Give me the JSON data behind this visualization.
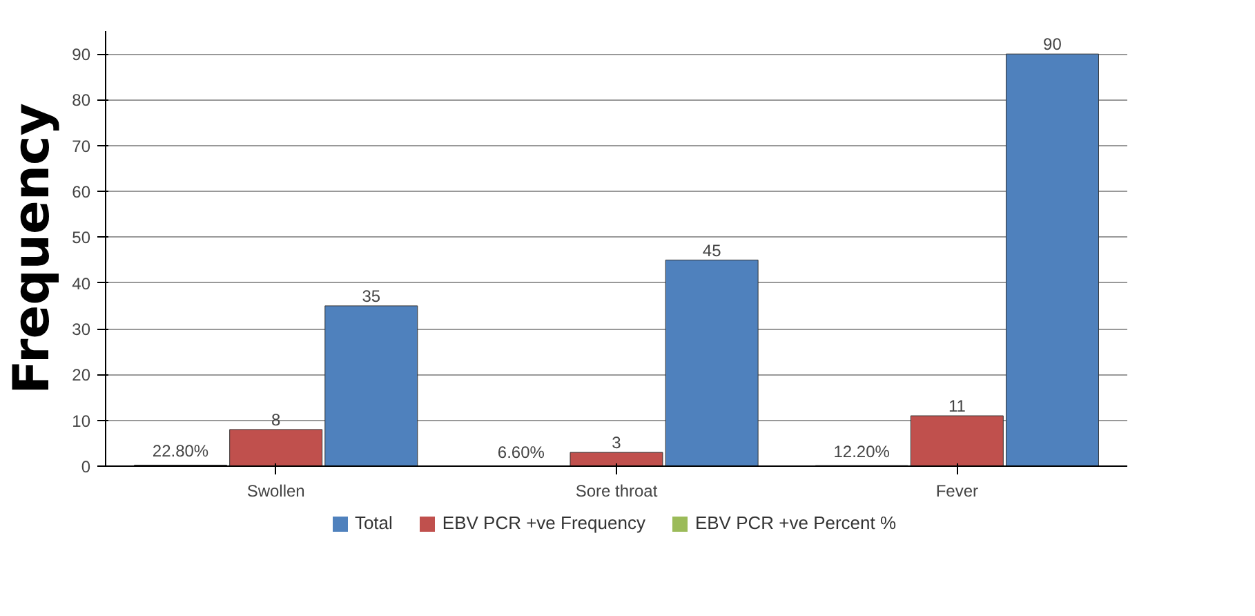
{
  "chart_data": {
    "type": "bar",
    "ylabel": "Frequency",
    "categories": [
      "Swollen",
      "Sore throat",
      "Fever"
    ],
    "series": [
      {
        "name": "Total",
        "color": "#4f81bd",
        "values": [
          35,
          45,
          90
        ],
        "value_labels": [
          "35",
          "45",
          "90"
        ]
      },
      {
        "name": "EBV PCR +ve Frequency",
        "color": "#c0504d",
        "values": [
          8,
          3,
          11
        ],
        "value_labels": [
          "8",
          "3",
          "11"
        ]
      },
      {
        "name": "EBV PCR +ve Percent %",
        "color": "#9bbb59",
        "values": [
          0.228,
          0.066,
          0.122
        ],
        "value_labels": [
          "22.80%",
          "6.60%",
          "12.20%"
        ]
      }
    ],
    "ylim": [
      0,
      95
    ],
    "yticks": [
      0,
      10,
      20,
      30,
      40,
      50,
      60,
      70,
      80,
      90
    ],
    "grid": "y",
    "legend": "bottom"
  }
}
